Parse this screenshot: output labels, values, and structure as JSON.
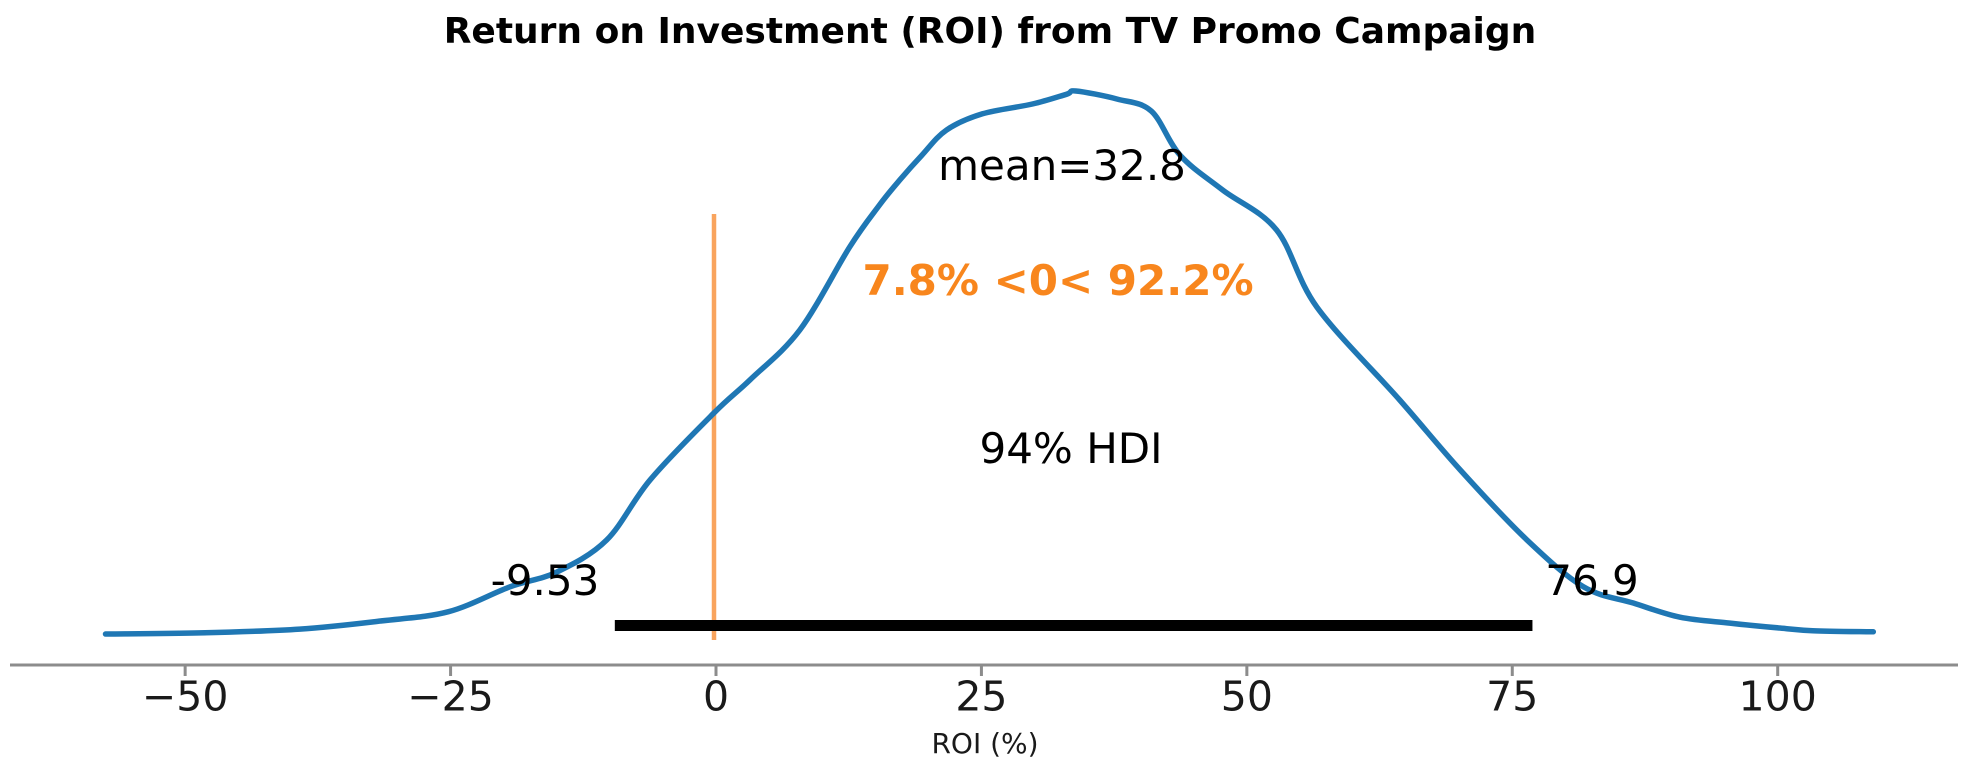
{
  "chart_data": {
    "type": "kde_posterior",
    "title": "Return on Investment (ROI) from TV Promo Campaign",
    "xlabel": "ROI (%)",
    "mean": 32.8,
    "mean_label": "mean=32.8",
    "hdi_probability": "94%",
    "hdi_label": "94% HDI",
    "hdi_lower": -9.53,
    "hdi_lower_label": "-9.53",
    "hdi_upper": 76.9,
    "hdi_upper_label": "76.9",
    "ref_val": 0,
    "pct_below_ref": 7.8,
    "pct_above_ref": 92.2,
    "ref_val_label": "7.8% <0< 92.2%",
    "x_axis_range": [
      -57.5,
      109
    ],
    "x_ticks": [
      {
        "value": -50,
        "label": "−50"
      },
      {
        "value": -25,
        "label": "−25"
      },
      {
        "value": 0,
        "label": "0"
      },
      {
        "value": 25,
        "label": "25"
      },
      {
        "value": 50,
        "label": "50"
      },
      {
        "value": 75,
        "label": "75"
      },
      {
        "value": 100,
        "label": "100"
      }
    ],
    "curve": {
      "x": [
        -57.5,
        -48.6,
        -39.2,
        -31.6,
        -25.2,
        -19.4,
        -15.0,
        -10.3,
        -6.2,
        -0.2,
        3.2,
        7.9,
        12.6,
        15.4,
        17.3,
        19.4,
        21.7,
        25.1,
        29.8,
        33.0,
        33.9,
        37.8,
        41.0,
        43.7,
        47.7,
        52.8,
        56.6,
        64.4,
        70.1,
        76.4,
        81.7,
        86.4,
        90.8,
        95.5,
        100.2,
        103.3,
        109.0
      ],
      "density": [
        0.0,
        0.002,
        0.009,
        0.024,
        0.041,
        0.087,
        0.114,
        0.173,
        0.284,
        0.407,
        0.468,
        0.56,
        0.713,
        0.79,
        0.836,
        0.882,
        0.928,
        0.958,
        0.976,
        0.994,
        1.0,
        0.985,
        0.963,
        0.882,
        0.818,
        0.744,
        0.602,
        0.431,
        0.302,
        0.173,
        0.087,
        0.057,
        0.031,
        0.02,
        0.011,
        0.006,
        0.004
      ]
    },
    "colors": {
      "curve": "#1f77b4",
      "ref_line": "#f9a45e",
      "ref_text": "#f8861d",
      "hdi_bar": "#000000",
      "axis": "#8c8c8c",
      "text": "#000000"
    }
  }
}
